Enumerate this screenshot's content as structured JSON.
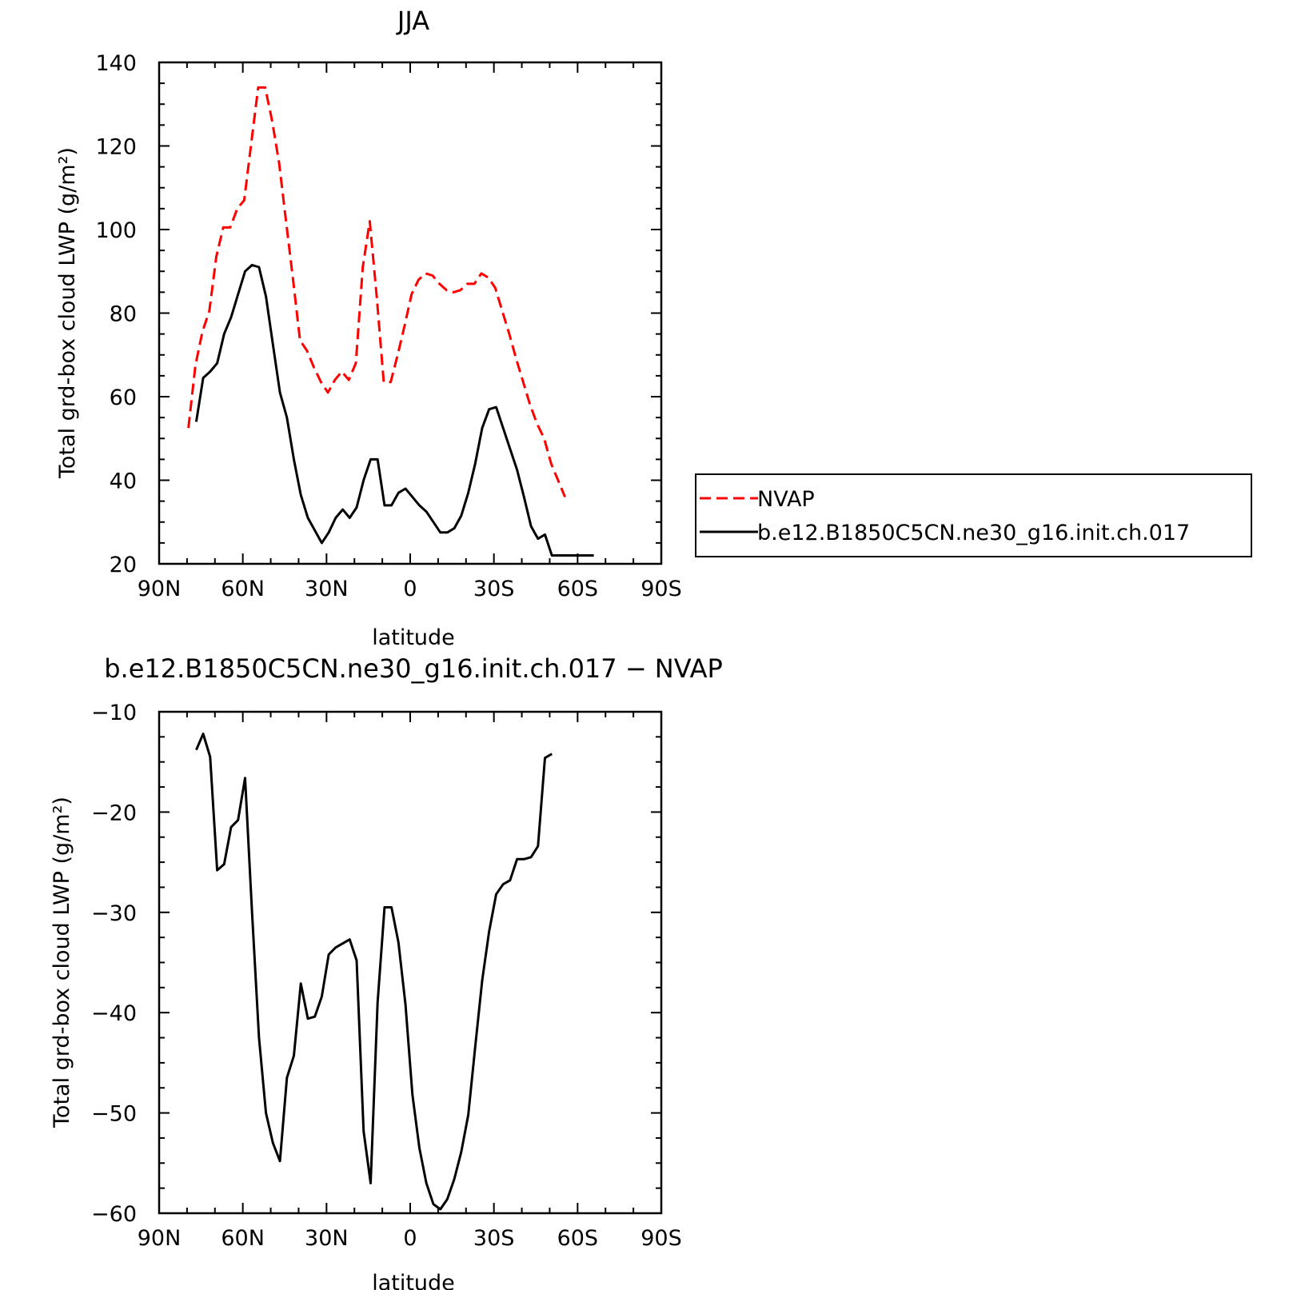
{
  "chart_data": [
    {
      "type": "line",
      "title": "JJA",
      "xlabel": "latitude",
      "ylabel": "Total grd-box cloud LWP (g/m²)",
      "xlim": [
        90,
        -90
      ],
      "ylim": [
        20,
        140
      ],
      "xticks": [
        90,
        60,
        30,
        0,
        -30,
        -60,
        -90
      ],
      "xtick_labels": [
        "90N",
        "60N",
        "30N",
        "0",
        "30S",
        "60S",
        "90S"
      ],
      "yticks": [
        20,
        40,
        60,
        80,
        100,
        120,
        140
      ],
      "ytick_labels": [
        "20",
        "40",
        "60",
        "80",
        "100",
        "120",
        "140"
      ],
      "legend_position": "right",
      "series": [
        {
          "name": "NVAP",
          "color": "#ff0000",
          "dash": "dashed",
          "x": [
            79.5,
            77,
            74.5,
            72,
            69.5,
            67,
            64.5,
            62,
            59.5,
            57,
            54.5,
            52,
            49.5,
            47,
            44.5,
            42,
            39.5,
            37,
            34.5,
            32,
            29.5,
            27,
            24.5,
            22,
            19.5,
            17,
            14.5,
            12,
            9.5,
            7,
            4.5,
            2,
            -0.5,
            -3,
            -5.5,
            -8,
            -10.5,
            -13,
            -15.5,
            -18,
            -20.5,
            -23,
            -25.5,
            -28,
            -30.5,
            -33,
            -35.5,
            -38,
            -40.5,
            -43,
            -45.5,
            -48,
            -50.5,
            -53,
            -55.5,
            -58,
            -60.5,
            -63,
            -65.5
          ],
          "values": [
            52.5,
            67.5,
            75.5,
            80.5,
            93.5,
            100.5,
            100.5,
            105.0,
            107.0,
            120.5,
            134.0,
            134.0,
            126.0,
            116.0,
            102.0,
            88.0,
            73.5,
            71.0,
            67.0,
            63.5,
            61.0,
            64.0,
            66.0,
            64.0,
            68.0,
            91.0,
            102.0,
            84.0,
            63.5,
            63.5,
            70.0,
            77.0,
            84.5,
            88.0,
            89.5,
            89.0,
            87.0,
            85.5,
            85.0,
            85.5,
            87.0,
            87.0,
            89.5,
            88.5,
            86.0,
            80.5,
            75.0,
            69.0,
            63.5,
            58.0,
            53.5,
            50.0,
            44.0,
            40.0,
            36.0,
            null,
            null,
            null,
            null
          ]
        },
        {
          "name": "b.e12.B1850C5CN.ne30_g16.init.ch.017",
          "color": "#000000",
          "dash": "solid",
          "x": [
            76.7,
            74.2,
            71.7,
            69.2,
            66.7,
            64.2,
            61.7,
            59.2,
            56.7,
            54.2,
            51.7,
            49.2,
            46.7,
            44.2,
            41.7,
            39.2,
            36.7,
            34.2,
            31.7,
            29.2,
            26.7,
            24.2,
            21.7,
            19.2,
            16.7,
            14.2,
            11.7,
            9.2,
            6.7,
            4.2,
            1.7,
            -0.8,
            -3.3,
            -5.8,
            -8.3,
            -10.8,
            -13.3,
            -15.8,
            -18.3,
            -20.8,
            -23.3,
            -25.8,
            -28.3,
            -30.8,
            -33.3,
            -35.8,
            -38.3,
            -40.8,
            -43.3,
            -45.8,
            -48.3,
            -50.8,
            -53.3,
            -55.8,
            -58.3,
            -60.8,
            -63.3,
            -65.8
          ],
          "values": [
            54,
            64.5,
            66,
            68,
            75,
            79,
            84.5,
            90,
            91.5,
            91,
            84,
            72.5,
            61,
            55,
            45,
            36.5,
            31,
            28,
            25,
            27.5,
            31,
            33,
            31,
            33.5,
            40,
            45,
            45,
            34,
            34,
            37,
            38,
            36,
            34,
            32.5,
            30,
            27.5,
            27.5,
            28.5,
            31.5,
            37,
            44,
            52.5,
            57,
            57.5,
            52.5,
            47.5,
            42.5,
            36,
            29,
            26,
            27,
            22,
            22,
            22,
            22,
            22,
            22,
            22
          ]
        }
      ]
    },
    {
      "type": "line",
      "title": "b.e12.B1850C5CN.ne30_g16.init.ch.017 − NVAP",
      "xlabel": "latitude",
      "ylabel": "Total grd-box cloud LWP (g/m²)",
      "xlim": [
        90,
        -90
      ],
      "ylim": [
        -60,
        -10
      ],
      "xticks": [
        90,
        60,
        30,
        0,
        -30,
        -60,
        -90
      ],
      "xtick_labels": [
        "90N",
        "60N",
        "30N",
        "0",
        "30S",
        "60S",
        "90S"
      ],
      "yticks": [
        -60,
        -50,
        -40,
        -30,
        -20,
        -10
      ],
      "ytick_labels": [
        "−60",
        "−50",
        "−40",
        "−30",
        "−20",
        "−10"
      ],
      "series": [
        {
          "name": "",
          "color": "#000000",
          "dash": "solid",
          "x": [
            76.7,
            74.2,
            71.7,
            69.2,
            66.7,
            64.2,
            61.7,
            59.2,
            56.7,
            54.2,
            51.7,
            49.2,
            46.7,
            44.2,
            41.7,
            39.2,
            36.7,
            34.2,
            31.7,
            29.2,
            26.7,
            24.2,
            21.7,
            19.2,
            16.7,
            14.2,
            11.7,
            9.2,
            6.7,
            4.2,
            1.7,
            -0.8,
            -3.3,
            -5.8,
            -8.3,
            -10.8,
            -13.3,
            -15.8,
            -18.3,
            -20.8,
            -23.3,
            -25.8,
            -28.3,
            -30.8,
            -33.3,
            -35.8,
            -38.3,
            -40.8,
            -43.3,
            -45.8,
            -48.3,
            -50.8,
            -53.3,
            -55.8,
            -58.3,
            -60.8,
            -63.3,
            -65.8
          ],
          "values": [
            -13.8,
            -12.2,
            -14.5,
            -25.8,
            -25.2,
            -21.5,
            -20.8,
            -16.6,
            -30,
            -42.5,
            -50,
            -53,
            -54.8,
            -46.5,
            -44.3,
            -37.1,
            -40.6,
            -40.4,
            -38.4,
            -34.2,
            -33.5,
            -33.1,
            -32.7,
            -34.8,
            -51.8,
            -57,
            -39,
            -29.5,
            -29.5,
            -33,
            -39.2,
            -48.2,
            -53.5,
            -57,
            -59.1,
            -59.6,
            -58.6,
            -56.6,
            -53.9,
            -50.2,
            -43.4,
            -36.8,
            -31.9,
            -28.2,
            -27.2,
            -26.8,
            -24.7,
            -24.7,
            -24.5,
            -23.4,
            -14.6,
            -14.2,
            null,
            null,
            null,
            null,
            null,
            null
          ]
        }
      ]
    }
  ]
}
